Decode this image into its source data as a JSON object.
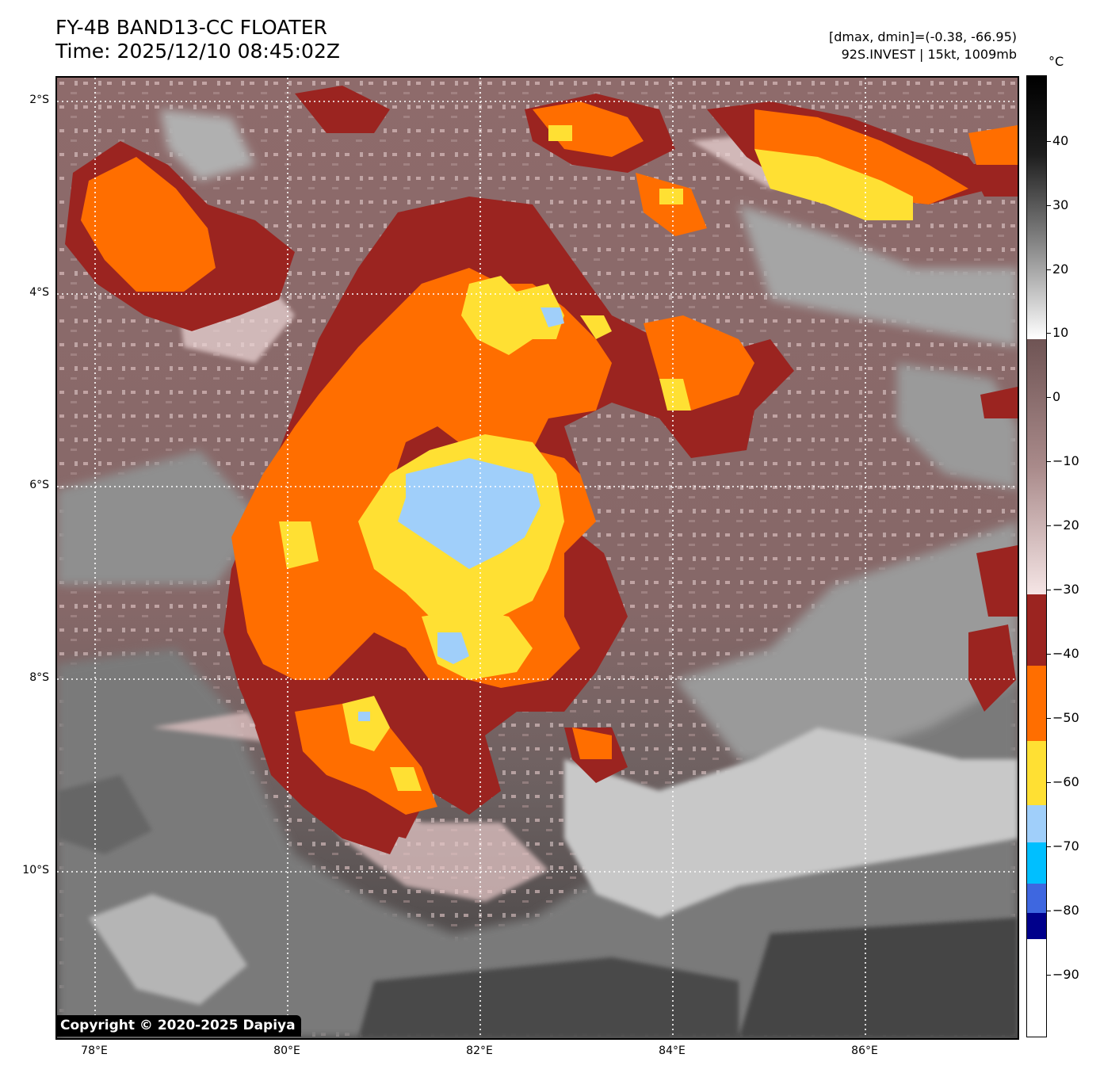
{
  "header": {
    "title": "FY-4B BAND13-CC FLOATER",
    "time": "Time: 2025/12/10 08:45:02Z",
    "range_text": "[dmax, dmin]=(-0.38, -66.95)",
    "storm_text": "92S.INVEST | 15kt, 1009mb"
  },
  "map": {
    "lat_labels": [
      "2°S",
      "4°S",
      "6°S",
      "8°S",
      "10°S"
    ],
    "lon_labels": [
      "78°E",
      "80°E",
      "82°E",
      "84°E",
      "86°E"
    ],
    "gridline_style": "dotted-white",
    "background_colors": {
      "cold_cloud_dark": "#9b2420",
      "cold_cloud_orange": "#ff6e00",
      "cold_cloud_yellow": "#ffe033",
      "coldest_blue": "#a0cffa",
      "warm_mauve": "#8e6b6b",
      "pink": "#e9cfcf",
      "gray": "#8c8c8c",
      "dark_gray": "#474747"
    }
  },
  "colorbar": {
    "unit": "°C",
    "tick_labels": [
      "40",
      "30",
      "20",
      "10",
      "0",
      "−10",
      "−20",
      "−30",
      "−40",
      "−50",
      "−60",
      "−70",
      "−80",
      "−90"
    ]
  },
  "copyright": "Copyright © 2020-2025 Dapiya"
}
